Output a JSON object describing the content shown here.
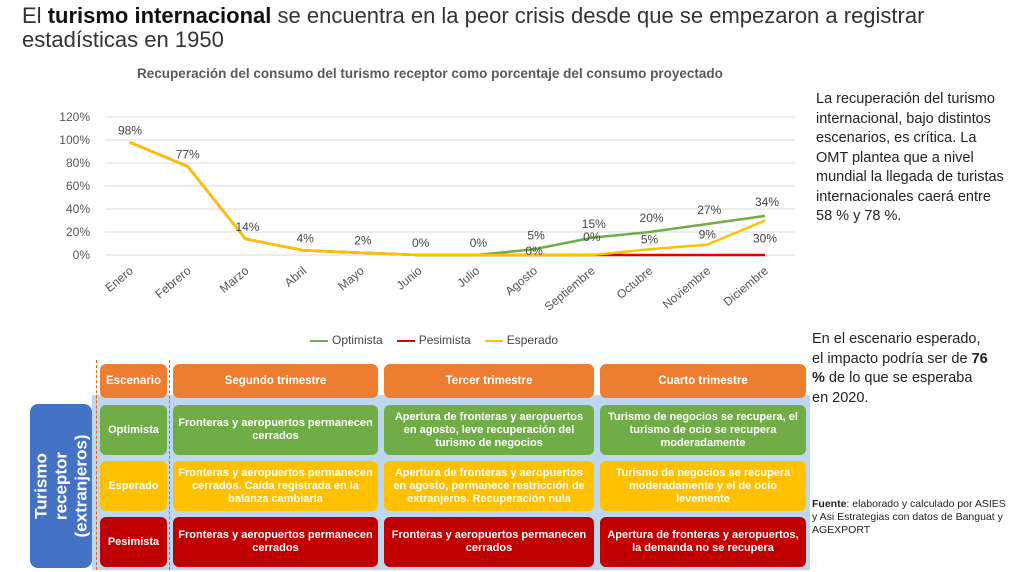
{
  "title": {
    "pre": "El ",
    "bold": "turismo internacional",
    "post": " se encuentra en la peor crisis desde que se empezaron a registrar estadísticas en 1950"
  },
  "chart_data": {
    "type": "line",
    "title": "Recuperación del consumo del turismo receptor como porcentaje del consumo proyectado",
    "categories": [
      "Enero",
      "Febrero",
      "Marzo",
      "Abril",
      "Mayo",
      "Junio",
      "Julio",
      "Agosto",
      "Septiembre",
      "Octubre",
      "Noviembre",
      "Diciembre"
    ],
    "yticks": [
      "0%",
      "20%",
      "40%",
      "60%",
      "80%",
      "100%",
      "120%"
    ],
    "ylim": [
      0,
      120
    ],
    "grid": true,
    "legend": "bottom",
    "series": [
      {
        "name": "Optimista",
        "color": "#70ad47",
        "values": [
          98,
          77,
          14,
          4,
          2,
          0,
          0,
          5,
          15,
          20,
          27,
          34
        ]
      },
      {
        "name": "Pesimista",
        "color": "#e00000",
        "values": [
          98,
          77,
          14,
          4,
          2,
          0,
          0,
          0,
          0,
          0,
          0,
          0
        ]
      },
      {
        "name": "Esperado",
        "color": "#ffc000",
        "values": [
          98,
          77,
          14,
          4,
          2,
          0,
          0,
          0,
          0,
          5,
          9,
          30
        ]
      }
    ],
    "data_labels_top": [
      "98%",
      "77%",
      "14%",
      "4%",
      "2%",
      "0%",
      "0%",
      "5%",
      "15%",
      "20%",
      "27%",
      "34%"
    ],
    "data_labels_bottom": {
      "7": "0%",
      "8": "0%",
      "9": "5%",
      "10": "9%",
      "11": "30%"
    }
  },
  "side": {
    "p1": "La recuperación del turismo internacional, bajo distintos escenarios, es crítica. La OMT plantea que a nivel mundial la llegada de turistas internacionales caerá entre 58 % y 78 %.",
    "p2_pre": "En el escenario esperado, el impacto podría ser de ",
    "p2_bold": "76 %",
    "p2_post": " de lo que se esperaba en 2020.",
    "src_bold": "Fuente",
    "src": ": elaborado y calculado por ASIES y Asi Estrategias con datos de Banguat y AGEXPORT"
  },
  "table": {
    "vertical_label": "Turismo receptor (extranjeros)",
    "headers": [
      "Escenario",
      "Segundo trimestre",
      "Tercer trimestre",
      "Cuarto trimestre"
    ],
    "rows": [
      {
        "scenario": "Optimista",
        "cells": [
          "Fronteras y aeropuertos permanecen cerrados",
          "Apertura de fronteras y aeropuertos en agosto, leve recuperación del turismo de negocios",
          "Turismo de negocios se recupera, el turismo de ocio se recupera moderadamente"
        ]
      },
      {
        "scenario": "Esperado",
        "cells": [
          "Fronteras y aeropuertos permanecen cerrados. Caída registrada en la balanza cambiaria",
          "Apertura de fronteras y aeropuertos en agosto, permanece restricción de extranjeros. Recuperación nula",
          "Turismo de negocios se recupera moderadamente y el de ocio levemente"
        ]
      },
      {
        "scenario": "Pesimista",
        "cells": [
          "Fronteras y aeropuertos permanecen cerrados",
          "Fronteras y aeropuertos permanecen cerrados",
          "Apertura de fronteras y aeropuertos, la demanda no se recupera"
        ]
      }
    ]
  }
}
